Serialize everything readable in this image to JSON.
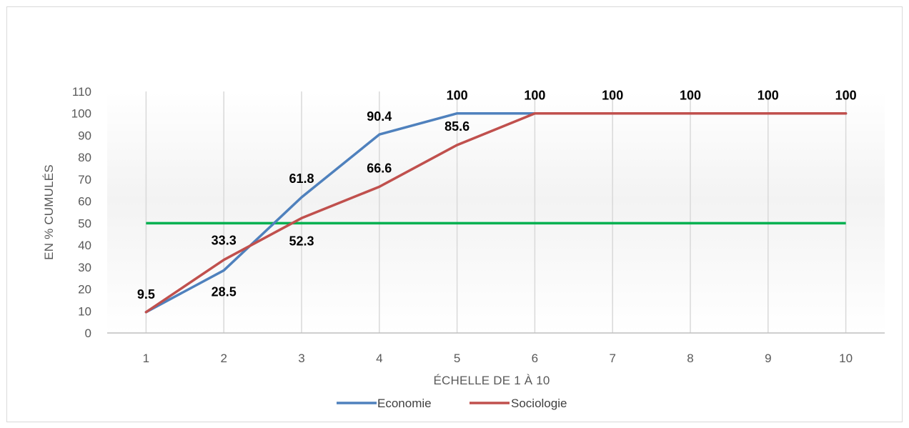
{
  "chart_data": {
    "type": "line",
    "xlabel": "ÉCHELLE DE 1 À 10",
    "ylabel": "EN % CUMULÉS",
    "x": [
      1,
      2,
      3,
      4,
      5,
      6,
      7,
      8,
      9,
      10
    ],
    "ylim": [
      0,
      110
    ],
    "yticks": [
      0,
      10,
      20,
      30,
      40,
      50,
      60,
      70,
      80,
      90,
      100,
      110
    ],
    "grid": "vertical",
    "legend": "bottom",
    "series": [
      {
        "name": "Economie",
        "color": "#4f81bd",
        "values": [
          9.5,
          28.5,
          61.8,
          90.4,
          100,
          100,
          100,
          100,
          100,
          100
        ],
        "labels": [
          "9.5",
          "28.5",
          "61.8",
          "90.4",
          "100",
          "100",
          "100",
          "100",
          "100",
          "100"
        ]
      },
      {
        "name": "Sociologie",
        "color": "#c0504d",
        "values": [
          9.5,
          33.3,
          52.3,
          66.6,
          85.6,
          100,
          100,
          100,
          100,
          100
        ],
        "labels": [
          "",
          "33.3",
          "52.3",
          "66.6",
          "85.6",
          "",
          "",
          "",
          "",
          ""
        ]
      }
    ],
    "reference_line": {
      "value": 50,
      "color": "#00b050"
    }
  }
}
